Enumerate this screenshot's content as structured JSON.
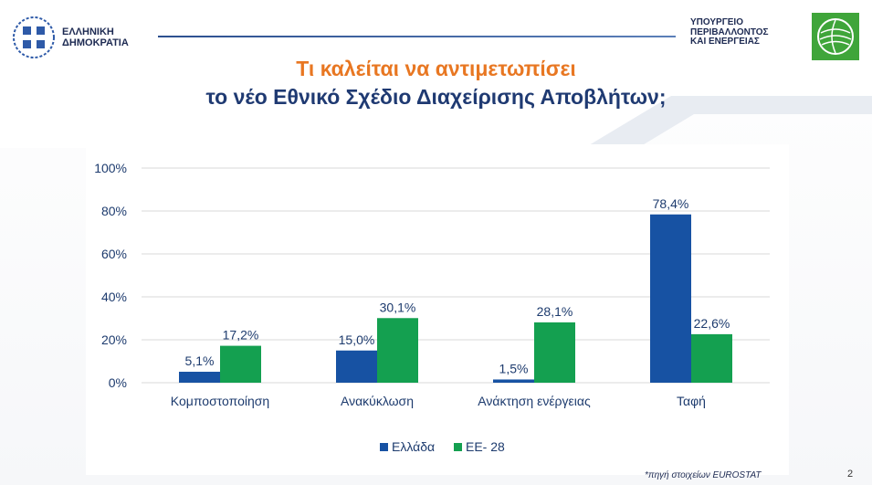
{
  "header": {
    "republic_line1": "ΕΛΛΗΝΙΚΗ",
    "republic_line2": "ΔΗΜΟΚΡΑΤΙΑ",
    "ministry_line1": "ΥΠΟΥΡΓΕΙΟ",
    "ministry_line2": "ΠΕΡΙΒΑΛΛΟΝΤΟΣ",
    "ministry_line3": "ΚΑΙ ΕΝΕΡΓΕΙΑΣ",
    "ministry_logo_icon": "globe-leaf-icon",
    "republic_emblem_icon": "greek-cross-emblem-icon"
  },
  "title": {
    "line1": "Τι καλείται να αντιμετωπίσει",
    "line2": "το νέο Εθνικό Σχέδιο Διαχείρισης Αποβλήτων;"
  },
  "colors": {
    "title_orange": "#e87722",
    "title_blue": "#1f3a72",
    "series_greece": "#1752a3",
    "series_eu": "#14a050",
    "ministry_logo": "#3fa53a"
  },
  "chart_data": {
    "type": "bar",
    "categories": [
      "Κομποστοποίηση",
      "Ανακύκλωση",
      "Ανάκτηση ενέργειας",
      "Ταφή"
    ],
    "series": [
      {
        "name": "Ελλάδα",
        "values": [
          5.1,
          15.0,
          1.5,
          78.4
        ],
        "labels": [
          "5,1%",
          "15,0%",
          "1,5%",
          "78,4%"
        ],
        "color": "#1752a3"
      },
      {
        "name": "ΕΕ- 28",
        "values": [
          17.2,
          30.1,
          28.1,
          22.6
        ],
        "labels": [
          "17,2%",
          "30,1%",
          "28,1%",
          "22,6%"
        ],
        "color": "#14a050"
      }
    ],
    "ylim": [
      0,
      100
    ],
    "yticks": [
      0,
      20,
      40,
      60,
      80,
      100
    ],
    "ytick_labels": [
      "0%",
      "20%",
      "40%",
      "60%",
      "80%",
      "100%"
    ],
    "grid": true,
    "legend_position": "bottom-center",
    "title": "",
    "xlabel": "",
    "ylabel": ""
  },
  "footer": {
    "source": "*πηγή στοιχείων EUROSTAT",
    "page_number": "2"
  }
}
